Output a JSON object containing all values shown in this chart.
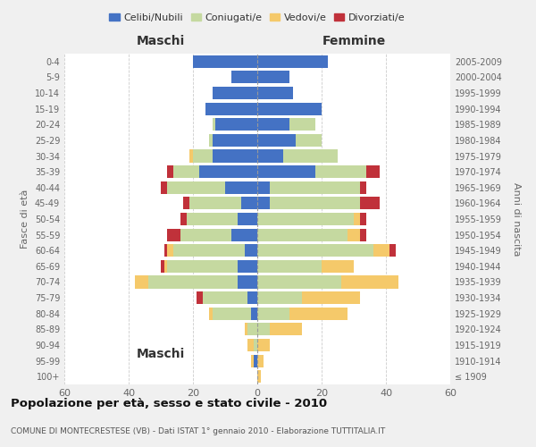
{
  "age_groups": [
    "100+",
    "95-99",
    "90-94",
    "85-89",
    "80-84",
    "75-79",
    "70-74",
    "65-69",
    "60-64",
    "55-59",
    "50-54",
    "45-49",
    "40-44",
    "35-39",
    "30-34",
    "25-29",
    "20-24",
    "15-19",
    "10-14",
    "5-9",
    "0-4"
  ],
  "birth_years": [
    "≤ 1909",
    "1910-1914",
    "1915-1919",
    "1920-1924",
    "1925-1929",
    "1930-1934",
    "1935-1939",
    "1940-1944",
    "1945-1949",
    "1950-1954",
    "1955-1959",
    "1960-1964",
    "1965-1969",
    "1970-1974",
    "1975-1979",
    "1980-1984",
    "1985-1989",
    "1990-1994",
    "1995-1999",
    "2000-2004",
    "2005-2009"
  ],
  "colors": {
    "celibi": "#4472c4",
    "coniugati": "#c5d9a0",
    "vedovi": "#f5c96a",
    "divorziati": "#c0313a"
  },
  "maschi": {
    "celibi": [
      0,
      1,
      0,
      0,
      2,
      3,
      6,
      6,
      4,
      8,
      6,
      5,
      10,
      18,
      14,
      14,
      13,
      16,
      14,
      8,
      20
    ],
    "coniugati": [
      0,
      0,
      1,
      3,
      12,
      14,
      28,
      22,
      22,
      16,
      16,
      16,
      18,
      8,
      6,
      1,
      1,
      0,
      0,
      0,
      0
    ],
    "vedovi": [
      0,
      1,
      2,
      1,
      1,
      0,
      4,
      1,
      2,
      0,
      0,
      0,
      0,
      0,
      1,
      0,
      0,
      0,
      0,
      0,
      0
    ],
    "divorziati": [
      0,
      0,
      0,
      0,
      0,
      2,
      0,
      1,
      1,
      4,
      2,
      2,
      2,
      2,
      0,
      0,
      0,
      0,
      0,
      0,
      0
    ]
  },
  "femmine": {
    "celibi": [
      0,
      0,
      0,
      0,
      0,
      0,
      0,
      0,
      0,
      0,
      0,
      4,
      4,
      18,
      8,
      12,
      10,
      20,
      11,
      10,
      22
    ],
    "coniugati": [
      0,
      0,
      0,
      4,
      10,
      14,
      26,
      20,
      36,
      28,
      30,
      28,
      28,
      16,
      17,
      8,
      8,
      0,
      0,
      0,
      0
    ],
    "vedovi": [
      1,
      2,
      4,
      10,
      18,
      18,
      18,
      10,
      5,
      4,
      2,
      0,
      0,
      0,
      0,
      0,
      0,
      0,
      0,
      0,
      0
    ],
    "divorziati": [
      0,
      0,
      0,
      0,
      0,
      0,
      0,
      0,
      2,
      2,
      2,
      6,
      2,
      4,
      0,
      0,
      0,
      0,
      0,
      0,
      0
    ]
  },
  "xlim": 60,
  "title": "Popolazione per età, sesso e stato civile - 2010",
  "subtitle": "COMUNE DI MONTECRESTESE (VB) - Dati ISTAT 1° gennaio 2010 - Elaborazione TUTTITALIA.IT",
  "ylabel_left": "Fasce di età",
  "ylabel_right": "Anni di nascita",
  "legend_labels": [
    "Celibi/Nubili",
    "Coniugati/e",
    "Vedovi/e",
    "Divorziati/e"
  ],
  "maschi_label": "Maschi",
  "femmine_label": "Femmine",
  "bg_color": "#f0f0f0",
  "plot_bg": "#ffffff"
}
